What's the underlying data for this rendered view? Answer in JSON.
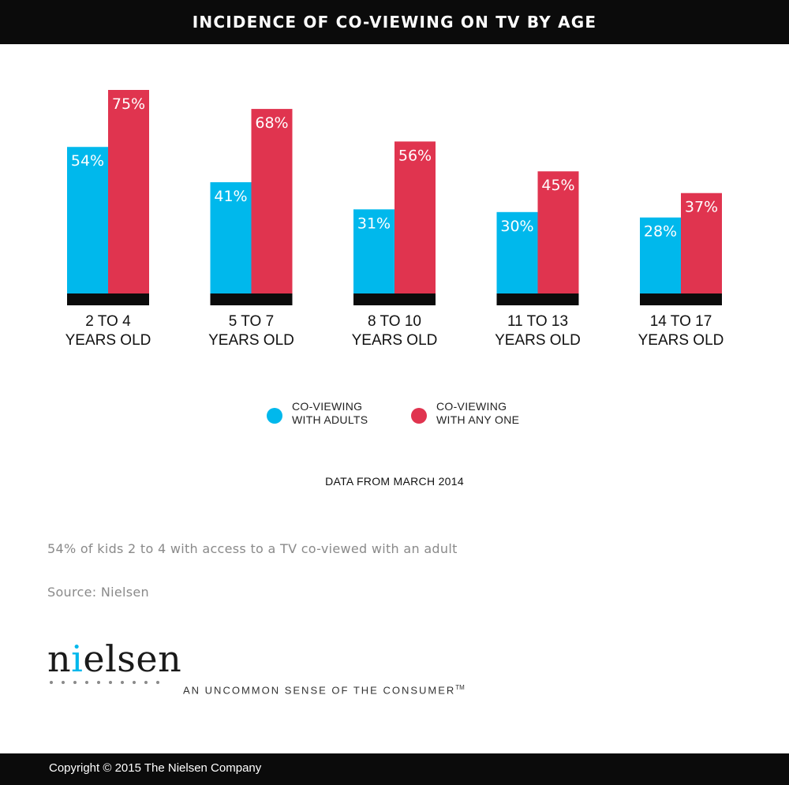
{
  "header": {
    "title": "INCIDENCE OF CO-VIEWING ON TV BY AGE"
  },
  "chart_data": {
    "type": "bar",
    "title": "INCIDENCE OF CO-VIEWING ON TV BY AGE",
    "categories": [
      [
        "2 TO 4",
        "YEARS OLD"
      ],
      [
        "5 TO 7",
        "YEARS OLD"
      ],
      [
        "8 TO 10",
        "YEARS OLD"
      ],
      [
        "11 TO 13",
        "YEARS OLD"
      ],
      [
        "14 TO 17",
        "YEARS OLD"
      ]
    ],
    "series": [
      {
        "name": "CO-VIEWING WITH ADULTS",
        "values": [
          54,
          41,
          31,
          30,
          28
        ],
        "color": "#00b8ec"
      },
      {
        "name": "CO-VIEWING WITH ANY ONE",
        "values": [
          75,
          68,
          56,
          45,
          37
        ],
        "color": "#e0344f"
      }
    ],
    "value_format": "percent",
    "ylim": [
      0,
      100
    ],
    "grid": false,
    "legend": "bottom-center",
    "baseline_color": "#0b0b0b"
  },
  "legend": {
    "items": [
      {
        "line1": "CO-VIEWING",
        "line2": "WITH ADULTS",
        "color": "#00b8ec"
      },
      {
        "line1": "CO-VIEWING",
        "line2": "WITH ANY ONE",
        "color": "#e0344f"
      }
    ]
  },
  "note": "DATA FROM MARCH 2014",
  "caption": "54% of kids 2 to 4 with access to a TV co-viewed with an adult",
  "source": "Source: Nielsen",
  "brand": {
    "logo_prefix": "n",
    "logo_accent": "i",
    "logo_suffix": "elsen",
    "tagline": "AN UNCOMMON SENSE OF THE CONSUMER",
    "trademark": "TM"
  },
  "footer": {
    "copyright": "Copyright © 2015 The Nielsen Company"
  }
}
